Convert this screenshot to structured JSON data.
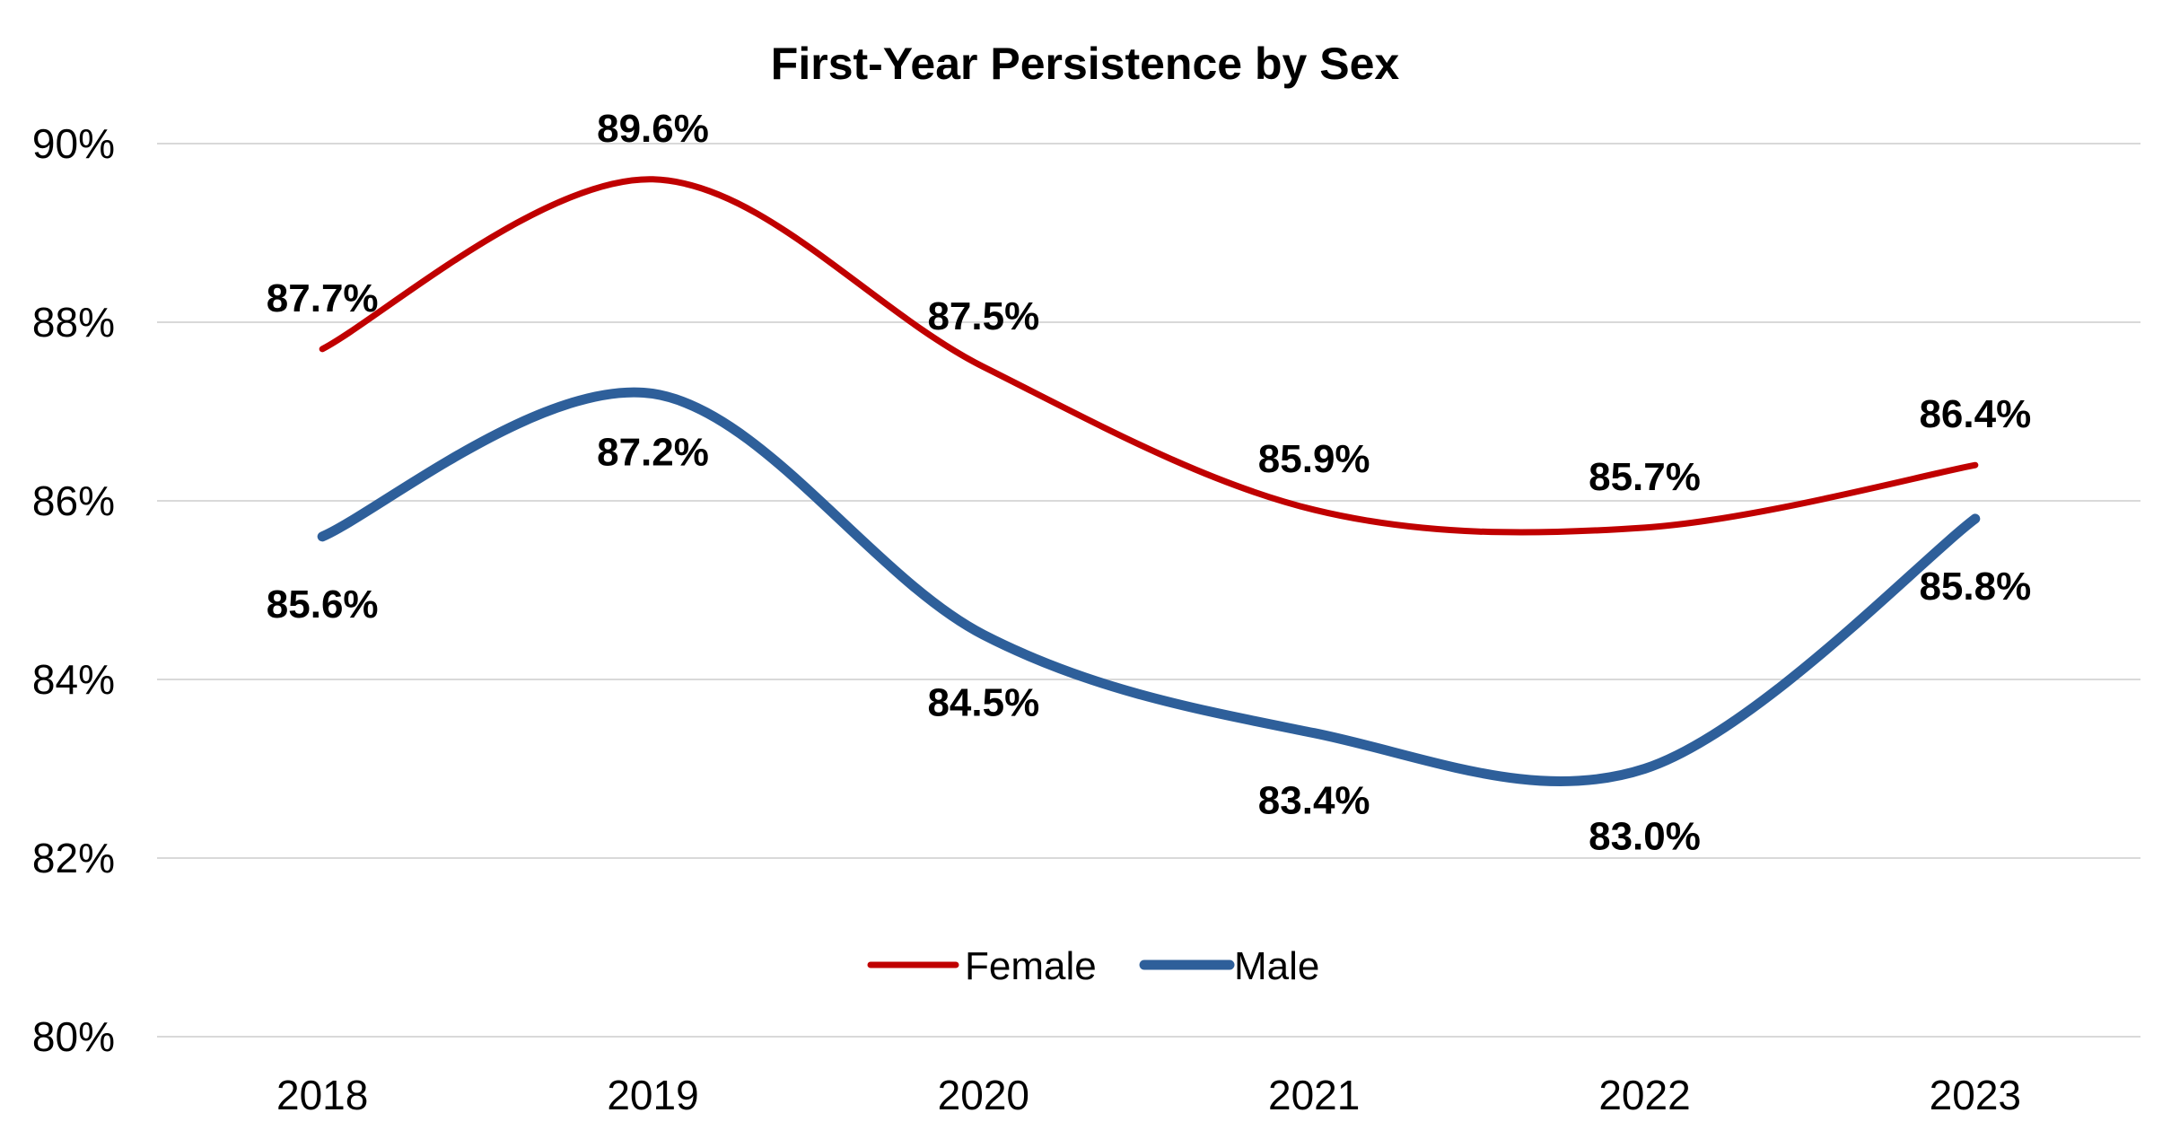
{
  "chart_data": {
    "type": "line",
    "title": "First-Year Persistence by Sex",
    "xlabel": "",
    "ylabel": "",
    "categories": [
      "2018",
      "2019",
      "2020",
      "2021",
      "2022",
      "2023"
    ],
    "ylim": [
      80,
      90
    ],
    "yticks": [
      80,
      82,
      84,
      86,
      88,
      90
    ],
    "ytick_labels": [
      "80%",
      "82%",
      "84%",
      "86%",
      "88%",
      "90%"
    ],
    "grid": true,
    "smooth": true,
    "legend_position": "bottom-center",
    "series": [
      {
        "name": "Female",
        "color": "#c00000",
        "values": [
          87.7,
          89.6,
          87.5,
          85.9,
          85.7,
          86.4
        ],
        "labels": [
          "87.7%",
          "89.6%",
          "87.5%",
          "85.9%",
          "85.7%",
          "86.4%"
        ]
      },
      {
        "name": "Male",
        "color": "#2e5f9a",
        "values": [
          85.6,
          87.2,
          84.5,
          83.4,
          83.0,
          85.8
        ],
        "labels": [
          "85.6%",
          "87.2%",
          "84.5%",
          "83.4%",
          "83.0%",
          "85.8%"
        ]
      }
    ]
  }
}
